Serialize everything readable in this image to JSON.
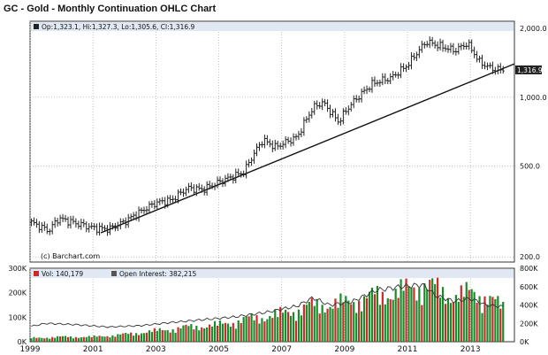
{
  "chart_data": [
    {
      "type": "ohlc",
      "title": "GC - Gold - Monthly Continuation OHLC Chart",
      "legend": "Op:1,323.1, Hi:1,327.3, Lo:1,305.6, Cl:1,316.9",
      "last_price_label": "1,316.9",
      "watermark": "(c) Barchart.com",
      "y_scale": "log",
      "ylim": [
        190,
        2150
      ],
      "y_ticks": [
        200,
        500,
        1000,
        2000
      ],
      "y_tick_labels": [
        "200.0",
        "500.0",
        "1,000.0",
        "2,000.0"
      ],
      "x_ticks": [
        1999,
        2001,
        2003,
        2005,
        2007,
        2009,
        2011,
        2013
      ],
      "x_range": [
        1999.0,
        2014.4
      ],
      "trendline": {
        "from": [
          2001.25,
          255
        ],
        "to": [
          2014.4,
          1400
        ]
      },
      "close_anchors": [
        [
          1999.0,
          285
        ],
        [
          1999.6,
          260
        ],
        [
          1999.9,
          295
        ],
        [
          2000.5,
          280
        ],
        [
          2001.0,
          268
        ],
        [
          2001.5,
          265
        ],
        [
          2002.0,
          285
        ],
        [
          2002.5,
          315
        ],
        [
          2003.0,
          345
        ],
        [
          2003.5,
          355
        ],
        [
          2004.0,
          400
        ],
        [
          2004.5,
          395
        ],
        [
          2005.0,
          425
        ],
        [
          2005.8,
          470
        ],
        [
          2006.4,
          650
        ],
        [
          2006.8,
          605
        ],
        [
          2007.5,
          670
        ],
        [
          2008.0,
          900
        ],
        [
          2008.3,
          950
        ],
        [
          2008.8,
          780
        ],
        [
          2009.2,
          930
        ],
        [
          2009.9,
          1150
        ],
        [
          2010.5,
          1220
        ],
        [
          2011.0,
          1380
        ],
        [
          2011.6,
          1750
        ],
        [
          2012.0,
          1680
        ],
        [
          2012.5,
          1600
        ],
        [
          2012.9,
          1720
        ],
        [
          2013.3,
          1420
        ],
        [
          2013.7,
          1330
        ],
        [
          2014.0,
          1316.9
        ]
      ]
    },
    {
      "type": "bar",
      "legend": [
        "Vol: 140,179",
        "Open Interest: 382,215"
      ],
      "series": [
        {
          "name": "Vol",
          "values": [
            140179
          ]
        },
        {
          "name": "Open Interest",
          "values": [
            382215
          ]
        }
      ],
      "left_axis_ticks": [
        "300K",
        "200K",
        "100K",
        "0K"
      ],
      "right_axis_ticks": [
        "800K",
        "600K",
        "400K",
        "200K",
        "0K"
      ],
      "left_ylim": [
        0,
        300000
      ],
      "right_ylim": [
        0,
        800000
      ],
      "open_interest_anchors": [
        [
          1999.0,
          165000
        ],
        [
          1999.5,
          200000
        ],
        [
          2000.5,
          185000
        ],
        [
          2001.5,
          160000
        ],
        [
          2002.5,
          175000
        ],
        [
          2003.5,
          210000
        ],
        [
          2004.5,
          240000
        ],
        [
          2005.5,
          270000
        ],
        [
          2006.5,
          320000
        ],
        [
          2007.5,
          390000
        ],
        [
          2008.0,
          480000
        ],
        [
          2008.5,
          400000
        ],
        [
          2009.2,
          430000
        ],
        [
          2010.0,
          560000
        ],
        [
          2010.8,
          600000
        ],
        [
          2011.5,
          620000
        ],
        [
          2011.9,
          500000
        ],
        [
          2012.5,
          440000
        ],
        [
          2013.0,
          470000
        ],
        [
          2013.5,
          400000
        ],
        [
          2014.0,
          382215
        ]
      ],
      "volume_anchors": [
        [
          1999.0,
          15000
        ],
        [
          2000.0,
          20000
        ],
        [
          2001.0,
          20000
        ],
        [
          2002.0,
          30000
        ],
        [
          2003.0,
          45000
        ],
        [
          2004.0,
          60000
        ],
        [
          2005.0,
          70000
        ],
        [
          2006.0,
          95000
        ],
        [
          2007.0,
          115000
        ],
        [
          2008.0,
          150000
        ],
        [
          2009.0,
          160000
        ],
        [
          2010.0,
          190000
        ],
        [
          2011.0,
          215000
        ],
        [
          2011.6,
          240000
        ],
        [
          2012.3,
          190000
        ],
        [
          2013.0,
          200000
        ],
        [
          2013.5,
          190000
        ],
        [
          2014.0,
          140179
        ]
      ]
    }
  ],
  "colors": {
    "up": "#1b8a2a",
    "down": "#cc2a2a",
    "candle": "#222222",
    "oi": "#333333",
    "legend_bg": "#dfe8f3",
    "label_bg": "#222222",
    "label_fg": "#ffffff"
  }
}
